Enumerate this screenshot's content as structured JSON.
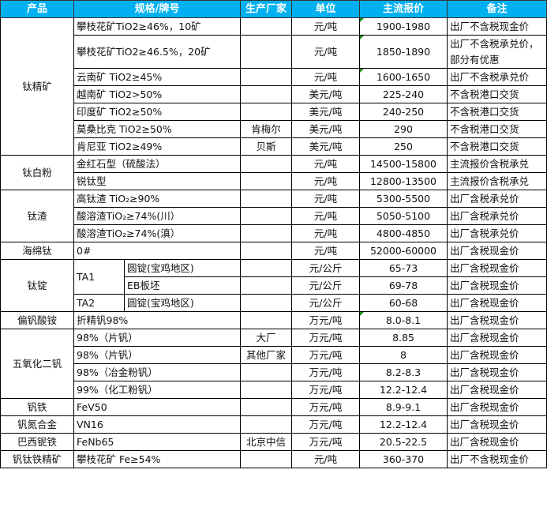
{
  "headers": [
    "产品",
    "规格/牌号",
    "生产厂家",
    "单位",
    "主流报价",
    "备注"
  ],
  "groups": [
    {
      "product": "钛精矿",
      "rows": [
        {
          "spec": "攀枝花矿TiO2≥46%，10矿",
          "maker": "",
          "unit": "元/吨",
          "price": "1900-1980",
          "note": "出厂不含税现金价",
          "mark": true
        },
        {
          "spec": "攀枝花矿TiO2≥46.5%，20矿",
          "maker": "",
          "unit": "元/吨",
          "price": "1850-1890",
          "note": "出厂不含税承兑价，部分有优惠",
          "mark": true,
          "tall": true
        },
        {
          "spec": "云南矿 TiO2≥45%",
          "maker": "",
          "unit": "元/吨",
          "price": "1600-1650",
          "note": "出厂不含税承兑价",
          "mark": true
        },
        {
          "spec": "越南矿 TiO2>50%",
          "maker": "",
          "unit": "美元/吨",
          "price": "225-240",
          "note": "不含税港口交货"
        },
        {
          "spec": "印度矿 TiO2≥50%",
          "maker": "",
          "unit": "美元/吨",
          "price": "240-250",
          "note": "不含税港口交货"
        },
        {
          "spec": "莫桑比克 TiO2≥50%",
          "maker": "肯梅尔",
          "unit": "美元/吨",
          "price": "290",
          "note": "不含税港口交货"
        },
        {
          "spec": "肯尼亚 TiO2≥49%",
          "maker": "贝斯",
          "unit": "美元/吨",
          "price": "250",
          "note": "不含税港口交货"
        }
      ]
    },
    {
      "product": "钛白粉",
      "rows": [
        {
          "spec": "金红石型（硫酸法）",
          "maker": "",
          "unit": "元/吨",
          "price": "14500-15800",
          "note": "主流报价含税承兑"
        },
        {
          "spec": "锐钛型",
          "maker": "",
          "unit": "元/吨",
          "price": "12800-13500",
          "note": "主流报价含税承兑"
        }
      ]
    },
    {
      "product": "钛渣",
      "rows": [
        {
          "spec": "高钛渣 TiO₂≥90%",
          "maker": "",
          "unit": "元/吨",
          "price": "5300-5500",
          "note": "出厂含税承兑价"
        },
        {
          "spec": "酸溶渣TiO₂≥74%(川）",
          "maker": "",
          "unit": "元/吨",
          "price": "5050-5100",
          "note": "出厂含税承兑价"
        },
        {
          "spec": "酸溶渣TiO₂≥74%(滇）",
          "maker": "",
          "unit": "元/吨",
          "price": "4800-4850",
          "note": "出厂含税承兑价"
        }
      ]
    },
    {
      "product": "海绵钛",
      "rows": [
        {
          "spec": "0#",
          "maker": "",
          "unit": "元/吨",
          "price": "52000-60000",
          "note": "出厂含税现金价"
        }
      ]
    },
    {
      "product": "钛锭",
      "rows": [
        {
          "spec": "TA1",
          "sub": "圆锭(宝鸡地区)",
          "maker": "",
          "unit": "元/公斤",
          "price": "65-73",
          "note": "出厂含税现金价"
        },
        {
          "spec": "TA1",
          "sub": "EB板坯",
          "maker": "",
          "unit": "元/公斤",
          "price": "69-78",
          "note": "出厂含税现金价"
        },
        {
          "spec": "TA2",
          "sub": "圆锭(宝鸡地区)",
          "maker": "",
          "unit": "元/公斤",
          "price": "60-68",
          "note": "出厂含税现金价"
        }
      ]
    },
    {
      "product": "偏钒酸铵",
      "rows": [
        {
          "spec": "折精钒98%",
          "maker": "",
          "unit": "万元/吨",
          "price": "8.0-8.1",
          "note": "出厂含税现金价",
          "mark": true
        }
      ]
    },
    {
      "product": "五氧化二钒",
      "rows": [
        {
          "spec": "98%（片钒）",
          "maker": "大厂",
          "unit": "万元/吨",
          "price": "8.85",
          "note": "出厂含税现金价"
        },
        {
          "spec": "98%（片钒）",
          "maker": "其他厂家",
          "unit": "万元/吨",
          "price": "8",
          "note": "出厂含税现金价"
        },
        {
          "spec": "98%（冶金粉钒）",
          "maker": "",
          "unit": "万元/吨",
          "price": "8.2-8.3",
          "note": "出厂含税现金价"
        },
        {
          "spec": "99%（化工粉钒）",
          "maker": "",
          "unit": "万元/吨",
          "price": "12.2-12.4",
          "note": "出厂含税现金价"
        }
      ]
    },
    {
      "product": "钒铁",
      "rows": [
        {
          "spec": "FeV50",
          "maker": "",
          "unit": "万元/吨",
          "price": "8.9-9.1",
          "note": "出厂含税现金价"
        }
      ]
    },
    {
      "product": "钒氮合金",
      "rows": [
        {
          "spec": "VN16",
          "maker": "",
          "unit": "万元/吨",
          "price": "12.2-12.4",
          "note": "出厂含税现金价"
        }
      ]
    },
    {
      "product": "巴西铌铁",
      "rows": [
        {
          "spec": "FeNb65",
          "maker": "北京中信",
          "unit": "万元/吨",
          "price": "20.5-22.5",
          "note": "出厂含税现金价"
        }
      ]
    },
    {
      "product": "钒钛铁精矿",
      "rows": [
        {
          "spec": "攀枝花矿 Fe≥54%",
          "maker": "",
          "unit": "元/吨",
          "price": "360-370",
          "note": "出厂不含税现金价"
        }
      ]
    }
  ]
}
